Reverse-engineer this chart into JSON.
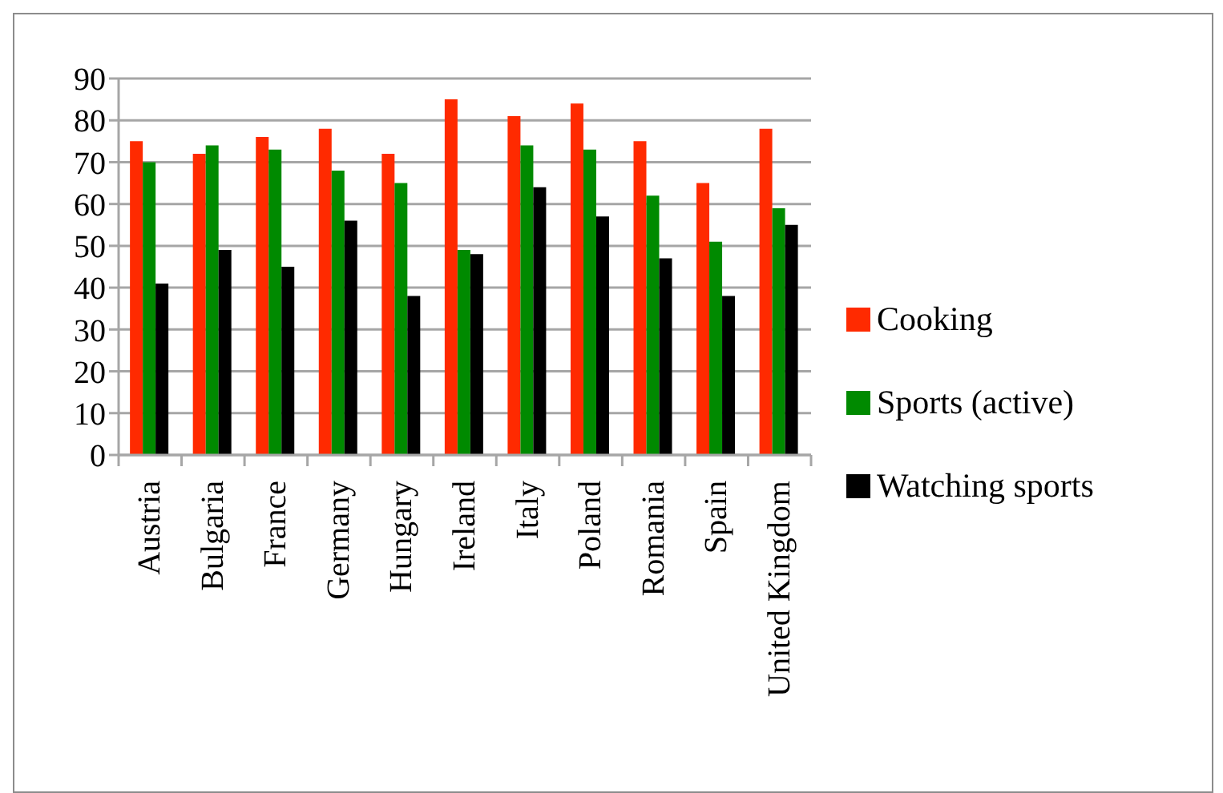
{
  "chart_data": {
    "type": "bar",
    "categories": [
      "Austria",
      "Bulgaria",
      "France",
      "Germany",
      "Hungary",
      "Ireland",
      "Italy",
      "Poland",
      "Romania",
      "Spain",
      "United Kingdom"
    ],
    "series": [
      {
        "name": "Cooking",
        "color": "#ff2a00",
        "values": [
          75,
          72,
          76,
          78,
          72,
          85,
          81,
          84,
          75,
          65,
          78
        ]
      },
      {
        "name": "Sports (active)",
        "color": "#008a00",
        "values": [
          70,
          74,
          73,
          68,
          65,
          49,
          74,
          73,
          62,
          51,
          59
        ]
      },
      {
        "name": "Watching sports",
        "color": "#000000",
        "values": [
          41,
          49,
          45,
          56,
          38,
          48,
          64,
          57,
          47,
          38,
          55
        ]
      }
    ],
    "ylim": [
      0,
      90
    ],
    "yticks": [
      0,
      10,
      20,
      30,
      40,
      50,
      60,
      70,
      80,
      90
    ],
    "grid": "y",
    "legend": "right"
  }
}
